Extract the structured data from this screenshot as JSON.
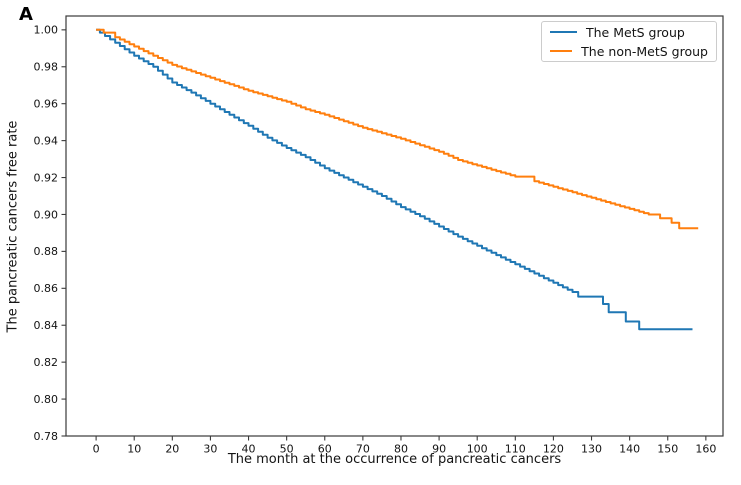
{
  "panel_label": "A",
  "chart_data": {
    "type": "line",
    "subtype": "kaplan-meier-step",
    "title": "",
    "xlabel": "The month at the occurrence of pancreatic cancers",
    "ylabel": "The pancreatic cancers free rate",
    "xlim": [
      -7.9,
      164.5
    ],
    "ylim": [
      0.78,
      1.0075
    ],
    "grid": false,
    "legend_position": "upper right",
    "x_ticks": [
      0,
      10,
      20,
      30,
      40,
      50,
      60,
      70,
      80,
      90,
      100,
      110,
      120,
      130,
      140,
      150,
      160
    ],
    "y_ticks": [
      "0.78",
      "0.80",
      "0.82",
      "0.84",
      "0.86",
      "0.88",
      "0.90",
      "0.92",
      "0.94",
      "0.96",
      "0.98",
      "1.00"
    ],
    "axis_color": "#3a3a3a",
    "tick_text_color": "#141414",
    "series": [
      {
        "name": "The MetS group",
        "color": "#1f77b4",
        "fine_step_until": 125,
        "points": [
          [
            0,
            1.0
          ],
          [
            1,
            0.9985
          ],
          [
            5,
            0.993
          ],
          [
            10,
            0.986
          ],
          [
            15,
            0.98
          ],
          [
            20,
            0.9715
          ],
          [
            25,
            0.966
          ],
          [
            30,
            0.96
          ],
          [
            35,
            0.954
          ],
          [
            40,
            0.948
          ],
          [
            45,
            0.9415
          ],
          [
            50,
            0.936
          ],
          [
            55,
            0.931
          ],
          [
            60,
            0.925
          ],
          [
            65,
            0.92
          ],
          [
            70,
            0.915
          ],
          [
            75,
            0.91
          ],
          [
            80,
            0.904
          ],
          [
            85,
            0.899
          ],
          [
            90,
            0.8935
          ],
          [
            95,
            0.888
          ],
          [
            100,
            0.883
          ],
          [
            105,
            0.878
          ],
          [
            110,
            0.873
          ],
          [
            115,
            0.868
          ],
          [
            120,
            0.863
          ],
          [
            125,
            0.858
          ],
          [
            126.5,
            0.8555
          ],
          [
            133,
            0.8515
          ],
          [
            134.5,
            0.847
          ],
          [
            139,
            0.842
          ],
          [
            142.5,
            0.8378
          ],
          [
            156.5,
            0.8378
          ]
        ]
      },
      {
        "name": "The non-MetS group",
        "color": "#ff7f0e",
        "fine_step_until": 148,
        "points": [
          [
            0,
            1.0
          ],
          [
            2,
            0.9985
          ],
          [
            5,
            0.996
          ],
          [
            10,
            0.991
          ],
          [
            15,
            0.986
          ],
          [
            20,
            0.981
          ],
          [
            25,
            0.9775
          ],
          [
            30,
            0.974
          ],
          [
            35,
            0.9705
          ],
          [
            40,
            0.967
          ],
          [
            45,
            0.964
          ],
          [
            50,
            0.961
          ],
          [
            55,
            0.957
          ],
          [
            60,
            0.954
          ],
          [
            65,
            0.9505
          ],
          [
            70,
            0.947
          ],
          [
            75,
            0.944
          ],
          [
            80,
            0.941
          ],
          [
            85,
            0.9375
          ],
          [
            90,
            0.934
          ],
          [
            95,
            0.9295
          ],
          [
            100,
            0.9265
          ],
          [
            105,
            0.9235
          ],
          [
            110,
            0.9205
          ],
          [
            115,
            0.918
          ],
          [
            120,
            0.915
          ],
          [
            125,
            0.912
          ],
          [
            130,
            0.909
          ],
          [
            135,
            0.906
          ],
          [
            140,
            0.903
          ],
          [
            145,
            0.9
          ],
          [
            148,
            0.898
          ],
          [
            151,
            0.8955
          ],
          [
            153,
            0.8925
          ],
          [
            158,
            0.8925
          ]
        ]
      }
    ]
  }
}
